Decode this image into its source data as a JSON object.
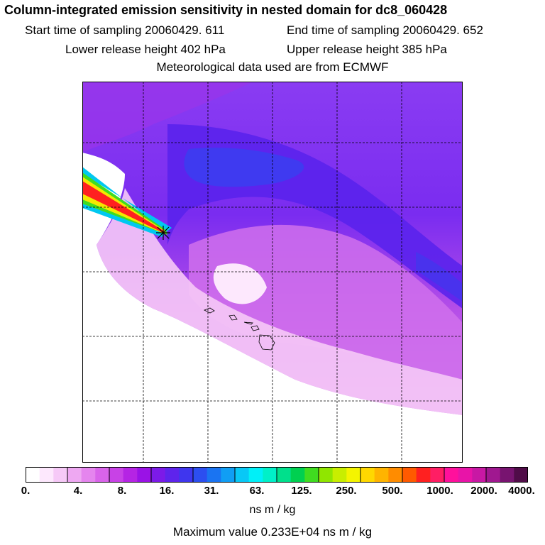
{
  "header": {
    "title": "Column-integrated emission sensitivity in nested domain for dc8_060428",
    "start_sampling": "Start time of sampling 20060429.   611",
    "end_sampling": "End time of sampling 20060429.   652",
    "lower_release": "Lower release height  402 hPa",
    "upper_release": "Upper release height  385 hPa",
    "met_data": "Meteorological data used are from ECMWF"
  },
  "colorbar": {
    "tick_labels": [
      "0.",
      "4.",
      "8.",
      "16.",
      "31.",
      "63.",
      "125.",
      "250.",
      "500.",
      "1000.",
      "2000.",
      "4000."
    ],
    "units": "ns m / kg",
    "colors": [
      "#ffffff",
      "#fde8fd",
      "#f6c9f7",
      "#eea8f2",
      "#e585ee",
      "#d964ea",
      "#c842e6",
      "#b524e4",
      "#9a12e6",
      "#7c1ae8",
      "#5e24ec",
      "#3f36ee",
      "#2c4ef0",
      "#1a74f2",
      "#109ef4",
      "#08c8f6",
      "#00f0f8",
      "#00f0c8",
      "#00e08c",
      "#00d050",
      "#40dc20",
      "#90e600",
      "#c8ee00",
      "#f4f400",
      "#ffd800",
      "#ffb400",
      "#ff8c00",
      "#ff5a00",
      "#ff2020",
      "#ff1e64",
      "#ff109c",
      "#e814a8",
      "#c818a4",
      "#a01890",
      "#781470",
      "#500c48"
    ]
  },
  "footer": {
    "max_value": "Maximum value  0.233E+04 ns m / kg"
  },
  "map": {
    "release_marker": "release-point",
    "background_color": "#7c2df0"
  }
}
